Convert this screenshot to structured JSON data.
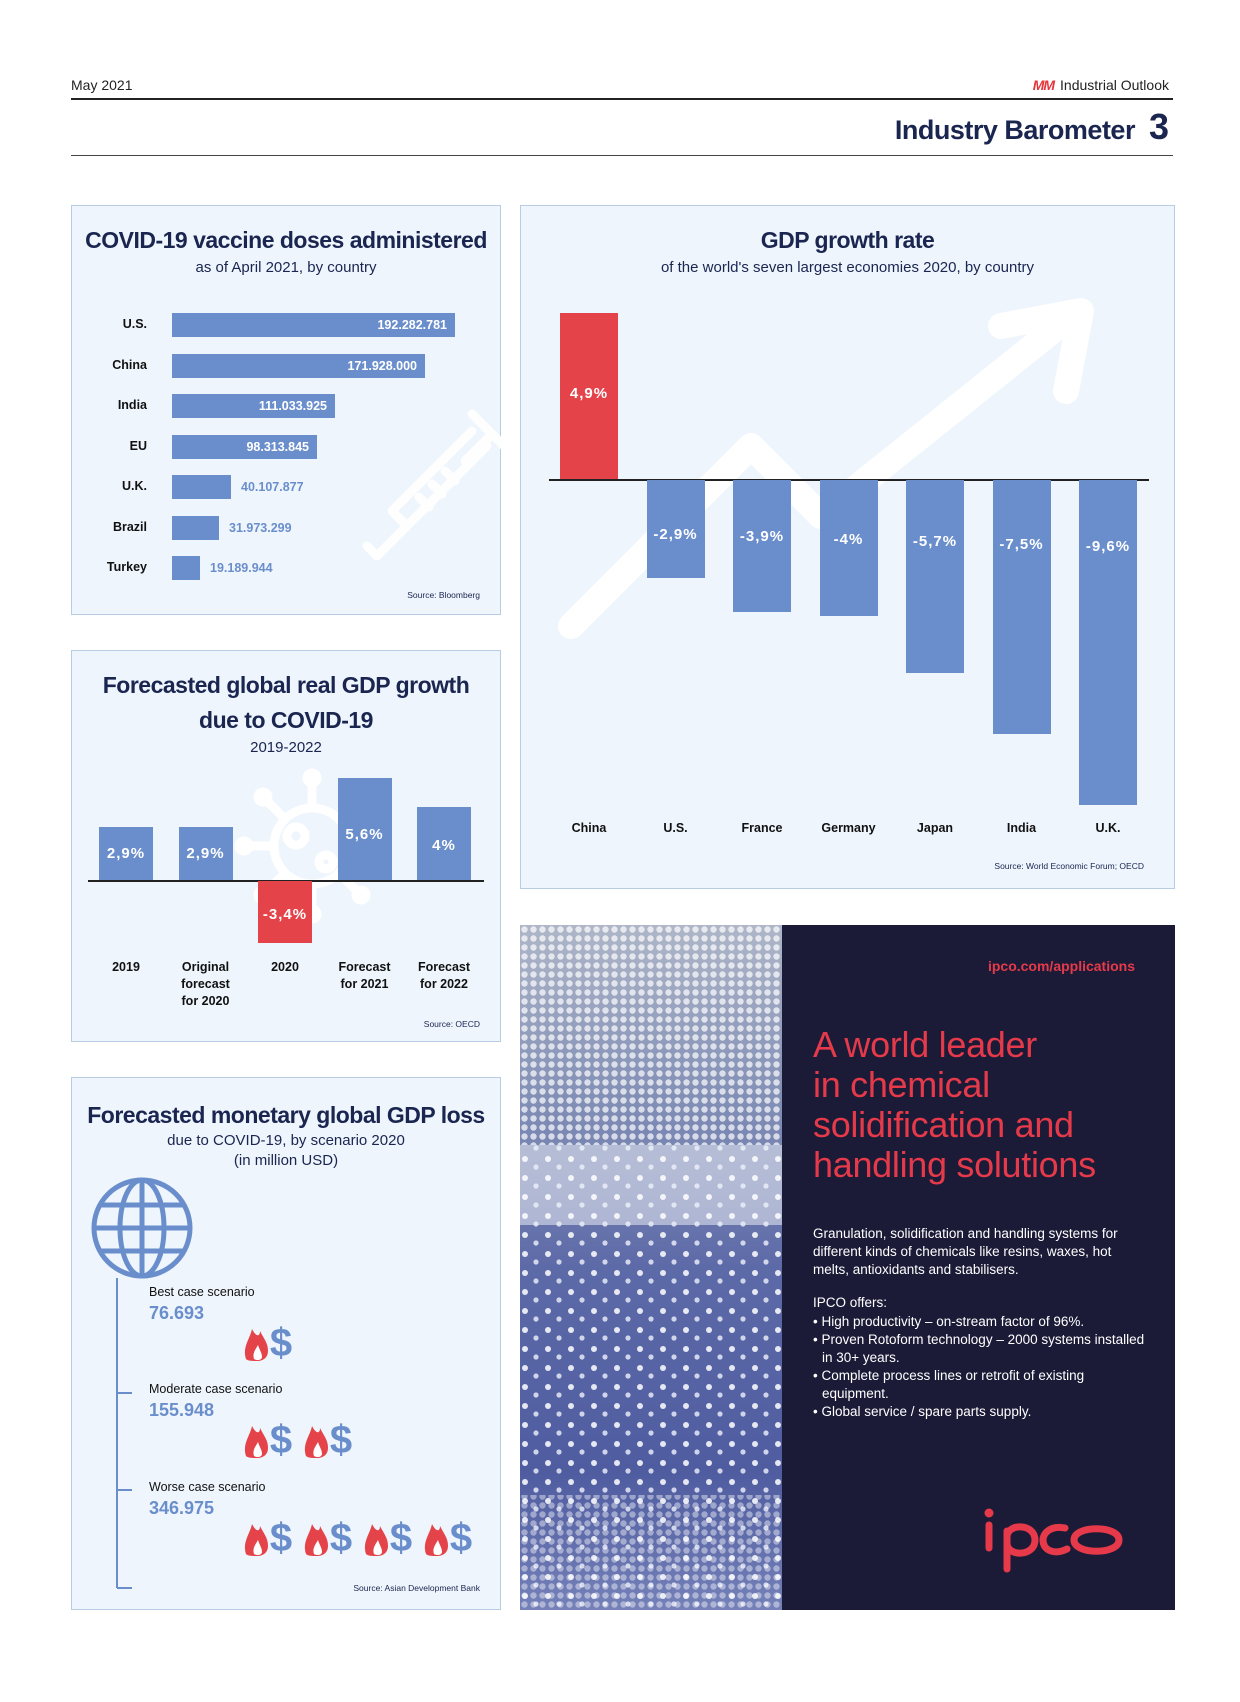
{
  "header": {
    "date": "May 2021",
    "brand_logo": "MM",
    "brand_text": "Industrial Outlook",
    "section_title": "Industry Barometer",
    "page_number": "3"
  },
  "colors": {
    "blue": "#6a8ecc",
    "red": "#e5434a",
    "navy": "#1a2550",
    "panel": "#eef5fc"
  },
  "vaccine_panel": {
    "title": "COVID-19 vaccine doses administered",
    "subtitle": "as of April 2021, by country",
    "source": "Source: Bloomberg",
    "icon": "syringe-icon",
    "chart_data": {
      "type": "bar",
      "orientation": "horizontal",
      "categories": [
        "U.S.",
        "China",
        "India",
        "EU",
        "U.K.",
        "Brazil",
        "Turkey"
      ],
      "values": [
        192282781,
        171928000,
        111033925,
        98313845,
        40107877,
        31973299,
        19189944
      ],
      "value_labels": [
        "192.282.781",
        "171.928.000",
        "111.033.925",
        "98.313.845",
        "40.107.877",
        "31.973.299",
        "19.189.944"
      ]
    }
  },
  "gdp_rate_panel": {
    "title": "GDP growth rate",
    "subtitle": "of the world's seven largest economies 2020, by country",
    "source": "Source: World Economic Forum; OECD",
    "icon": "rising-arrow-icon",
    "chart_data": {
      "type": "bar",
      "categories": [
        "China",
        "U.S.",
        "France",
        "Germany",
        "Japan",
        "India",
        "U.K."
      ],
      "values": [
        4.9,
        -2.9,
        -3.9,
        -4,
        -5.7,
        -7.5,
        -9.6
      ],
      "value_labels": [
        "4,9%",
        "-2,9%",
        "-3,9%",
        "-4%",
        "-5,7%",
        "-7,5%",
        "-9,6%"
      ]
    }
  },
  "forecast_panel": {
    "title_line1": "Forecasted global real GDP growth",
    "title_line2": "due to COVID-19",
    "subtitle": "2019-2022",
    "source": "Source: OECD",
    "icon": "virus-icon",
    "chart_data": {
      "type": "bar",
      "categories": [
        "2019",
        "Original forecast for 2020",
        "2020",
        "Forecast for 2021",
        "Forecast for 2022"
      ],
      "category_lines": [
        [
          "2019"
        ],
        [
          "Original",
          "forecast",
          "for 2020"
        ],
        [
          "2020"
        ],
        [
          "Forecast",
          "for 2021"
        ],
        [
          "Forecast",
          "for 2022"
        ]
      ],
      "values": [
        2.9,
        2.9,
        -3.4,
        5.6,
        4
      ],
      "value_labels": [
        "2,9%",
        "2,9%",
        "-3,4%",
        "5,6%",
        "4%"
      ]
    }
  },
  "loss_panel": {
    "title": "Forecasted monetary global GDP loss",
    "subtitle_line1": "due to COVID-19, by scenario 2020",
    "subtitle_line2": "(in million USD)",
    "source": "Source: Asian Development Bank",
    "icon": "globe-icon",
    "scenarios": [
      {
        "label": "Best case scenario",
        "value": "76.693",
        "icon_count": 1
      },
      {
        "label": "Moderate case scenario",
        "value": "155.948",
        "icon_count": 2
      },
      {
        "label": "Worse case scenario",
        "value": "346.975",
        "icon_count": 4
      }
    ]
  },
  "ad": {
    "url": "ipco.com/applications",
    "headline": [
      "A world leader",
      "in chemical",
      "solidification and",
      "handling solutions"
    ],
    "description": "Granulation, solidification and handling systems for different kinds of chemicals like resins, waxes, hot melts, antioxidants and stabilisers.",
    "offers_title": "IPCO offers:",
    "offers": [
      "• High productivity – on-stream factor of 96%.",
      "• Proven Rotoform technology – 2000 systems installed in 30+ years.",
      "• Complete process lines or retrofit of existing equipment.",
      "• Global service / spare parts supply."
    ],
    "logo_text": "ipco"
  }
}
